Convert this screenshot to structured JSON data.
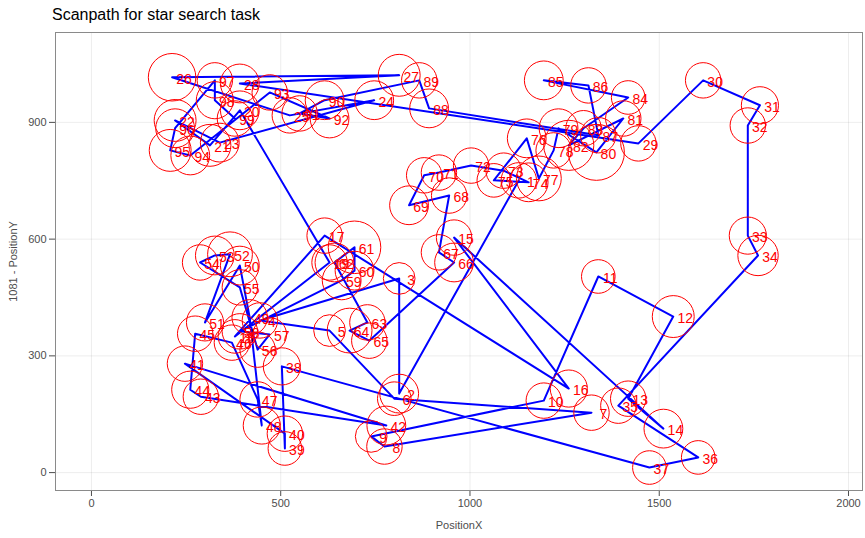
{
  "chart_data": {
    "type": "scanpath",
    "title": "Scanpath for star search task",
    "x_label": "PositionX",
    "y_label": "1081 - PositionY",
    "xlim": [
      -95,
      2037
    ],
    "xticks": [
      0,
      500,
      1000,
      1500,
      2000
    ],
    "ylim": [
      -46,
      1131
    ],
    "yticks": [
      0,
      300,
      600,
      900
    ],
    "grid": true,
    "labels": [
      1,
      2,
      3,
      4,
      5,
      6,
      7,
      8,
      9,
      10,
      11,
      12,
      13,
      14,
      15,
      16,
      17,
      18,
      19,
      20,
      21,
      22,
      23,
      24,
      25,
      26,
      27,
      28,
      29,
      30,
      31,
      32,
      33,
      34,
      35,
      36,
      37,
      38,
      39,
      40,
      41,
      42,
      43,
      44,
      45,
      46,
      47,
      48,
      49,
      50,
      51,
      52,
      53,
      54,
      55,
      56,
      57,
      58,
      59,
      60,
      61,
      62,
      63,
      64,
      65,
      66,
      67,
      68,
      69,
      70,
      71,
      72,
      73,
      74,
      75,
      76,
      77,
      78,
      79,
      80,
      81,
      82,
      83,
      84,
      85,
      86,
      87,
      88,
      89,
      90,
      91,
      92,
      93,
      94,
      95,
      96,
      97,
      98,
      99
    ],
    "x": [
      1129,
      813,
      813,
      445,
      629,
      800,
      1321,
      774,
      739,
      1195,
      1339,
      1537,
      1418,
      1511,
      958,
      1261,
      616,
      379,
      629,
      392,
      313,
      221,
      339,
      747,
      524,
      213,
      813,
      392,
      1445,
      1616,
      1766,
      1734,
      1734,
      1761,
      1392,
      1603,
      1474,
      503,
      511,
      511,
      247,
      779,
      289,
      261,
      274,
      371,
      439,
      450,
      418,
      392,
      300,
      366,
      326,
      287,
      392,
      439,
      471,
      392,
      661,
      695,
      695,
      642,
      729,
      682,
      734,
      958,
      918,
      945,
      839,
      879,
      918,
      1003,
      1089,
      1155,
      1063,
      1150,
      1182,
      1221,
      1234,
      1334,
      1405,
      1261,
      1300,
      1418,
      1195,
      1313,
      1339,
      892,
      866,
      616,
      550,
      629,
      471,
      261,
      208,
      221,
      326,
      326,
      379
    ],
    "y": [
      751,
      203,
      499,
      391,
      365,
      190,
      154,
      67,
      93,
      185,
      504,
      401,
      190,
      113,
      604,
      216,
      609,
      350,
      540,
      931,
      841,
      905,
      848,
      957,
      918,
      1016,
      1021,
      1000,
      846,
      1008,
      944,
      892,
      609,
      558,
      172,
      39,
      13,
      273,
      62,
      100,
      280,
      121,
      195,
      213,
      357,
      334,
      188,
      121,
      399,
      532,
      386,
      561,
      558,
      540,
      476,
      316,
      355,
      363,
      494,
      519,
      579,
      540,
      386,
      365,
      339,
      540,
      566,
      712,
      687,
      764,
      771,
      789,
      776,
      746,
      751,
      859,
      756,
      828,
      885,
      823,
      910,
      841,
      885,
      964,
      1008,
      995,
      867,
      936,
      1008,
      957,
      923,
      910,
      977,
      815,
      828,
      885,
      1008,
      957,
      910
    ],
    "sizes": [
      10,
      12,
      8,
      10,
      8,
      9,
      10,
      10,
      8,
      10,
      9,
      14,
      10,
      12,
      10,
      11,
      10,
      9,
      10,
      12,
      14,
      14,
      12,
      12,
      10,
      18,
      14,
      12,
      10,
      10,
      11,
      10,
      11,
      13,
      10,
      9,
      9,
      11,
      9,
      10,
      10,
      12,
      10,
      11,
      10,
      10,
      10,
      11,
      10,
      12,
      11,
      16,
      12,
      10,
      10,
      10,
      9,
      10,
      12,
      12,
      22,
      12,
      10,
      16,
      10,
      12,
      10,
      10,
      12,
      10,
      10,
      10,
      10,
      12,
      9,
      12,
      16,
      10,
      12,
      25,
      10,
      20,
      10,
      9,
      12,
      10,
      10,
      12,
      10,
      12,
      10,
      12,
      10,
      12,
      14,
      12,
      10,
      11,
      10
    ],
    "series": [
      {
        "type": "line",
        "color": "#0000ff"
      },
      {
        "type": "scatter",
        "marker": "circle",
        "color": "#ff0000",
        "data_labels": true
      }
    ]
  }
}
